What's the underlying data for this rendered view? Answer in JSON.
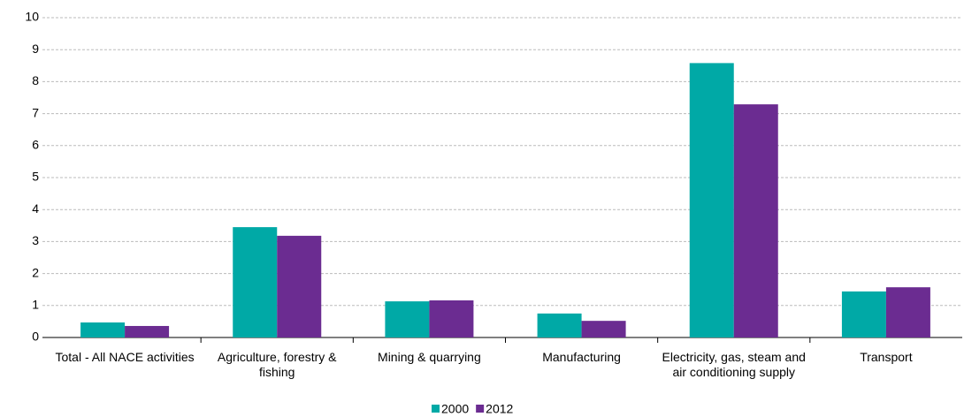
{
  "chart_data": {
    "type": "bar",
    "categories": [
      "Total - All NACE activities",
      "Agriculture, forestry & fishing",
      "Mining & quarrying",
      "Manufacturing",
      "Electricity, gas, steam and air conditioning supply",
      "Transport"
    ],
    "series": [
      {
        "name": "2000",
        "color": "#00a9a6",
        "values": [
          0.47,
          3.45,
          1.13,
          0.75,
          8.58,
          1.44
        ]
      },
      {
        "name": "2012",
        "color": "#6b2c91",
        "values": [
          0.36,
          3.18,
          1.16,
          0.52,
          7.29,
          1.57
        ]
      }
    ],
    "ylim": [
      0,
      10
    ],
    "yticks": [
      0,
      1,
      2,
      3,
      4,
      5,
      6,
      7,
      8,
      9,
      10
    ],
    "grid": true,
    "legend": "bottom"
  }
}
